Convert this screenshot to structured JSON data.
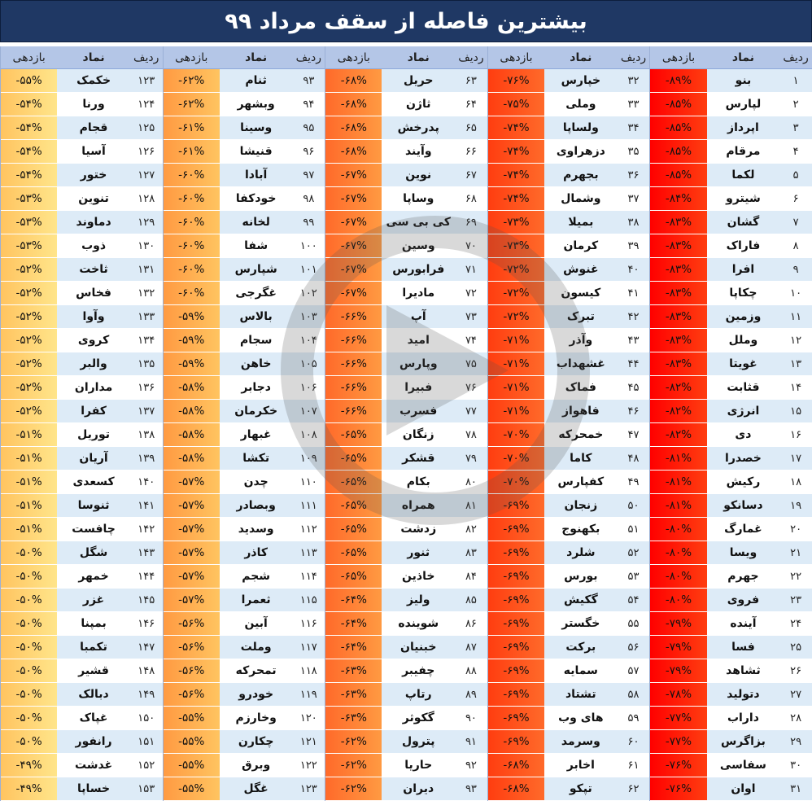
{
  "title": "بیشترین فاصله از سقف مرداد ۹۹",
  "headers": {
    "index": "ردیف",
    "symbol": "نماد",
    "return": "بازدهی"
  },
  "colors": {
    "title_bg": "#1f3864",
    "header_bg": "#b4c6e7",
    "row_odd": "#ddebf7",
    "row_even": "#ffffff",
    "gradient": [
      "#ff0000",
      "#ff3d10",
      "#ff6a2a",
      "#ff9a42",
      "#ffc460",
      "#ffe58a"
    ]
  },
  "watermark_icon": "logo-watermark-icon",
  "blocks": [
    {
      "rows": [
        {
          "i": "۱",
          "s": "بنو",
          "r": "-۸۹%"
        },
        {
          "i": "۲",
          "s": "لپارس",
          "r": "-۸۵%"
        },
        {
          "i": "۳",
          "s": "اپرداز",
          "r": "-۸۵%"
        },
        {
          "i": "۴",
          "s": "مرقام",
          "r": "-۸۵%"
        },
        {
          "i": "۵",
          "s": "لکما",
          "r": "-۸۵%"
        },
        {
          "i": "۶",
          "s": "شیترو",
          "r": "-۸۴%"
        },
        {
          "i": "۷",
          "s": "گشان",
          "r": "-۸۳%"
        },
        {
          "i": "۸",
          "s": "فاراک",
          "r": "-۸۳%"
        },
        {
          "i": "۹",
          "s": "افرا",
          "r": "-۸۳%"
        },
        {
          "i": "۱۰",
          "s": "چکاپا",
          "r": "-۸۳%"
        },
        {
          "i": "۱۱",
          "s": "وزمین",
          "r": "-۸۳%"
        },
        {
          "i": "۱۲",
          "s": "وملل",
          "r": "-۸۳%"
        },
        {
          "i": "۱۳",
          "s": "غویتا",
          "r": "-۸۳%"
        },
        {
          "i": "۱۴",
          "s": "قثابت",
          "r": "-۸۲%"
        },
        {
          "i": "۱۵",
          "s": "انرژی",
          "r": "-۸۲%"
        },
        {
          "i": "۱۶",
          "s": "دی",
          "r": "-۸۲%"
        },
        {
          "i": "۱۷",
          "s": "خصدرا",
          "r": "-۸۱%"
        },
        {
          "i": "۱۸",
          "s": "رکیش",
          "r": "-۸۱%"
        },
        {
          "i": "۱۹",
          "s": "دسانکو",
          "r": "-۸۱%"
        },
        {
          "i": "۲۰",
          "s": "غمارگ",
          "r": "-۸۰%"
        },
        {
          "i": "۲۱",
          "s": "ویسا",
          "r": "-۸۰%"
        },
        {
          "i": "۲۲",
          "s": "جهرم",
          "r": "-۸۰%"
        },
        {
          "i": "۲۳",
          "s": "فروی",
          "r": "-۸۰%"
        },
        {
          "i": "۲۴",
          "s": "آینده",
          "r": "-۷۹%"
        },
        {
          "i": "۲۵",
          "s": "فسا",
          "r": "-۷۹%"
        },
        {
          "i": "۲۶",
          "s": "ثشاهد",
          "r": "-۷۹%"
        },
        {
          "i": "۲۷",
          "s": "دتولید",
          "r": "-۷۸%"
        },
        {
          "i": "۲۸",
          "s": "داراب",
          "r": "-۷۷%"
        },
        {
          "i": "۲۹",
          "s": "بزاگرس",
          "r": "-۷۷%"
        },
        {
          "i": "۳۰",
          "s": "سفاسی",
          "r": "-۷۶%"
        },
        {
          "i": "۳۱",
          "s": "اوان",
          "r": "-۷۶%"
        }
      ]
    },
    {
      "rows": [
        {
          "i": "۳۲",
          "s": "خپارس",
          "r": "-۷۶%"
        },
        {
          "i": "۳۳",
          "s": "وملی",
          "r": "-۷۵%"
        },
        {
          "i": "۳۴",
          "s": "ولساپا",
          "r": "-۷۴%"
        },
        {
          "i": "۳۵",
          "s": "دزهراوی",
          "r": "-۷۴%"
        },
        {
          "i": "۳۶",
          "s": "بجهرم",
          "r": "-۷۴%"
        },
        {
          "i": "۳۷",
          "s": "وشمال",
          "r": "-۷۴%"
        },
        {
          "i": "۳۸",
          "s": "بمیلا",
          "r": "-۷۳%"
        },
        {
          "i": "۳۹",
          "s": "کرمان",
          "r": "-۷۳%"
        },
        {
          "i": "۴۰",
          "s": "غنوش",
          "r": "-۷۲%"
        },
        {
          "i": "۴۱",
          "s": "کیسون",
          "r": "-۷۲%"
        },
        {
          "i": "۴۲",
          "s": "تبرک",
          "r": "-۷۲%"
        },
        {
          "i": "۴۳",
          "s": "وآذر",
          "r": "-۷۱%"
        },
        {
          "i": "۴۴",
          "s": "غشهداب",
          "r": "-۷۱%"
        },
        {
          "i": "۴۵",
          "s": "فماک",
          "r": "-۷۱%"
        },
        {
          "i": "۴۶",
          "s": "فاهواز",
          "r": "-۷۱%"
        },
        {
          "i": "۴۷",
          "s": "خمحرکه",
          "r": "-۷۰%"
        },
        {
          "i": "۴۸",
          "s": "کاما",
          "r": "-۷۰%"
        },
        {
          "i": "۴۹",
          "s": "کفپارس",
          "r": "-۷۰%"
        },
        {
          "i": "۵۰",
          "s": "زنجان",
          "r": "-۶۹%"
        },
        {
          "i": "۵۱",
          "s": "بکهنوج",
          "r": "-۶۹%"
        },
        {
          "i": "۵۲",
          "s": "شلرد",
          "r": "-۶۹%"
        },
        {
          "i": "۵۳",
          "s": "بورس",
          "r": "-۶۹%"
        },
        {
          "i": "۵۴",
          "s": "گکیش",
          "r": "-۶۹%"
        },
        {
          "i": "۵۵",
          "s": "خگستر",
          "r": "-۶۹%"
        },
        {
          "i": "۵۶",
          "s": "برکت",
          "r": "-۶۹%"
        },
        {
          "i": "۵۷",
          "s": "سمایه",
          "r": "-۶۹%"
        },
        {
          "i": "۵۸",
          "s": "تشتاد",
          "r": "-۶۹%"
        },
        {
          "i": "۵۹",
          "s": "های وب",
          "r": "-۶۹%"
        },
        {
          "i": "۶۰",
          "s": "وسرمد",
          "r": "-۶۹%"
        },
        {
          "i": "۶۱",
          "s": "اخابر",
          "r": "-۶۸%"
        },
        {
          "i": "۶۲",
          "s": "تپکو",
          "r": "-۶۸%"
        }
      ]
    },
    {
      "rows": [
        {
          "i": "۶۳",
          "s": "حریل",
          "r": "-۶۸%"
        },
        {
          "i": "۶۴",
          "s": "ثاژن",
          "r": "-۶۸%"
        },
        {
          "i": "۶۵",
          "s": "پدرخش",
          "r": "-۶۸%"
        },
        {
          "i": "۶۶",
          "s": "وآیند",
          "r": "-۶۸%"
        },
        {
          "i": "۶۷",
          "s": "نوین",
          "r": "-۶۷%"
        },
        {
          "i": "۶۸",
          "s": "وساپا",
          "r": "-۶۷%"
        },
        {
          "i": "۶۹",
          "s": "کی بی سی",
          "r": "-۶۷%"
        },
        {
          "i": "۷۰",
          "s": "وسین",
          "r": "-۶۷%"
        },
        {
          "i": "۷۱",
          "s": "فرابورس",
          "r": "-۶۷%"
        },
        {
          "i": "۷۲",
          "s": "مادیرا",
          "r": "-۶۷%"
        },
        {
          "i": "۷۳",
          "s": "آپ",
          "r": "-۶۶%"
        },
        {
          "i": "۷۴",
          "s": "امید",
          "r": "-۶۶%"
        },
        {
          "i": "۷۵",
          "s": "وپارس",
          "r": "-۶۶%"
        },
        {
          "i": "۷۶",
          "s": "فبیرا",
          "r": "-۶۶%"
        },
        {
          "i": "۷۷",
          "s": "فسرب",
          "r": "-۶۶%"
        },
        {
          "i": "۷۸",
          "s": "زنگان",
          "r": "-۶۵%"
        },
        {
          "i": "۷۹",
          "s": "قشکر",
          "r": "-۶۵%"
        },
        {
          "i": "۸۰",
          "s": "بکام",
          "r": "-۶۵%"
        },
        {
          "i": "۸۱",
          "s": "همراه",
          "r": "-۶۵%"
        },
        {
          "i": "۸۲",
          "s": "زدشت",
          "r": "-۶۵%"
        },
        {
          "i": "۸۳",
          "s": "ثنور",
          "r": "-۶۵%"
        },
        {
          "i": "۸۴",
          "s": "خاذین",
          "r": "-۶۵%"
        },
        {
          "i": "۸۵",
          "s": "ولیز",
          "r": "-۶۴%"
        },
        {
          "i": "۸۶",
          "s": "شوینده",
          "r": "-۶۴%"
        },
        {
          "i": "۸۷",
          "s": "خبنیان",
          "r": "-۶۴%"
        },
        {
          "i": "۸۸",
          "s": "چفیبر",
          "r": "-۶۳%"
        },
        {
          "i": "۸۹",
          "s": "رتاپ",
          "r": "-۶۳%"
        },
        {
          "i": "۹۰",
          "s": "گکوثر",
          "r": "-۶۳%"
        },
        {
          "i": "۹۱",
          "s": "پترول",
          "r": "-۶۲%"
        },
        {
          "i": "۹۲",
          "s": "حاریا",
          "r": "-۶۲%"
        },
        {
          "i": "۹۳",
          "s": "دیران",
          "r": "-۶۲%"
        }
      ]
    },
    {
      "rows": [
        {
          "i": "۹۳",
          "s": "ثنام",
          "r": "-۶۲%"
        },
        {
          "i": "۹۴",
          "s": "وبشهر",
          "r": "-۶۲%"
        },
        {
          "i": "۹۵",
          "s": "وسینا",
          "r": "-۶۱%"
        },
        {
          "i": "۹۶",
          "s": "قنیشا",
          "r": "-۶۱%"
        },
        {
          "i": "۹۷",
          "s": "آبادا",
          "r": "-۶۰%"
        },
        {
          "i": "۹۸",
          "s": "خودکفا",
          "r": "-۶۰%"
        },
        {
          "i": "۹۹",
          "s": "لخانه",
          "r": "-۶۰%"
        },
        {
          "i": "۱۰۰",
          "s": "شفا",
          "r": "-۶۰%"
        },
        {
          "i": "۱۰۱",
          "s": "شپارس",
          "r": "-۶۰%"
        },
        {
          "i": "۱۰۲",
          "s": "غگرجی",
          "r": "-۶۰%"
        },
        {
          "i": "۱۰۳",
          "s": "بالاس",
          "r": "-۵۹%"
        },
        {
          "i": "۱۰۴",
          "s": "سجام",
          "r": "-۵۹%"
        },
        {
          "i": "۱۰۵",
          "s": "خاهن",
          "r": "-۵۹%"
        },
        {
          "i": "۱۰۶",
          "s": "دجابر",
          "r": "-۵۸%"
        },
        {
          "i": "۱۰۷",
          "s": "خکرمان",
          "r": "-۵۸%"
        },
        {
          "i": "۱۰۸",
          "s": "غبهار",
          "r": "-۵۸%"
        },
        {
          "i": "۱۰۹",
          "s": "تکشا",
          "r": "-۵۸%"
        },
        {
          "i": "۱۱۰",
          "s": "چدن",
          "r": "-۵۷%"
        },
        {
          "i": "۱۱۱",
          "s": "وبصادر",
          "r": "-۵۷%"
        },
        {
          "i": "۱۱۲",
          "s": "وسدید",
          "r": "-۵۷%"
        },
        {
          "i": "۱۱۳",
          "s": "کاذر",
          "r": "-۵۷%"
        },
        {
          "i": "۱۱۴",
          "s": "شجم",
          "r": "-۵۷%"
        },
        {
          "i": "۱۱۵",
          "s": "ثعمرا",
          "r": "-۵۷%"
        },
        {
          "i": "۱۱۶",
          "s": "آبین",
          "r": "-۵۶%"
        },
        {
          "i": "۱۱۷",
          "s": "وملت",
          "r": "-۵۶%"
        },
        {
          "i": "۱۱۸",
          "s": "تمحرکه",
          "r": "-۵۶%"
        },
        {
          "i": "۱۱۹",
          "s": "خودرو",
          "r": "-۵۶%"
        },
        {
          "i": "۱۲۰",
          "s": "وخارزم",
          "r": "-۵۵%"
        },
        {
          "i": "۱۲۱",
          "s": "چکارن",
          "r": "-۵۵%"
        },
        {
          "i": "۱۲۲",
          "s": "وبرق",
          "r": "-۵۵%"
        },
        {
          "i": "۱۲۳",
          "s": "غگل",
          "r": "-۵۵%"
        }
      ]
    },
    {
      "rows": [
        {
          "i": "۱۲۳",
          "s": "خکمک",
          "r": "-۵۵%"
        },
        {
          "i": "۱۲۴",
          "s": "ورنا",
          "r": "-۵۴%"
        },
        {
          "i": "۱۲۵",
          "s": "قجام",
          "r": "-۵۴%"
        },
        {
          "i": "۱۲۶",
          "s": "آسیا",
          "r": "-۵۴%"
        },
        {
          "i": "۱۲۷",
          "s": "ختور",
          "r": "-۵۴%"
        },
        {
          "i": "۱۲۸",
          "s": "تنوین",
          "r": "-۵۳%"
        },
        {
          "i": "۱۲۹",
          "s": "دماوند",
          "r": "-۵۳%"
        },
        {
          "i": "۱۳۰",
          "s": "ذوب",
          "r": "-۵۳%"
        },
        {
          "i": "۱۳۱",
          "s": "ثاخت",
          "r": "-۵۲%"
        },
        {
          "i": "۱۳۲",
          "s": "فخاس",
          "r": "-۵۲%"
        },
        {
          "i": "۱۳۳",
          "s": "وآوا",
          "r": "-۵۲%"
        },
        {
          "i": "۱۳۴",
          "s": "کروی",
          "r": "-۵۲%"
        },
        {
          "i": "۱۳۵",
          "s": "والبر",
          "r": "-۵۲%"
        },
        {
          "i": "۱۳۶",
          "s": "مداران",
          "r": "-۵۲%"
        },
        {
          "i": "۱۳۷",
          "s": "کفرا",
          "r": "-۵۲%"
        },
        {
          "i": "۱۳۸",
          "s": "توریل",
          "r": "-۵۱%"
        },
        {
          "i": "۱۳۹",
          "s": "آریان",
          "r": "-۵۱%"
        },
        {
          "i": "۱۴۰",
          "s": "کسعدی",
          "r": "-۵۱%"
        },
        {
          "i": "۱۴۱",
          "s": "ثنوسا",
          "r": "-۵۱%"
        },
        {
          "i": "۱۴۲",
          "s": "چافست",
          "r": "-۵۱%"
        },
        {
          "i": "۱۴۳",
          "s": "شگل",
          "r": "-۵۰%"
        },
        {
          "i": "۱۴۴",
          "s": "خمهر",
          "r": "-۵۰%"
        },
        {
          "i": "۱۴۵",
          "s": "غزر",
          "r": "-۵۰%"
        },
        {
          "i": "۱۴۶",
          "s": "بمپنا",
          "r": "-۵۰%"
        },
        {
          "i": "۱۴۷",
          "s": "تکمبا",
          "r": "-۵۰%"
        },
        {
          "i": "۱۴۸",
          "s": "قشیر",
          "r": "-۵۰%"
        },
        {
          "i": "۱۴۹",
          "s": "دبالک",
          "r": "-۵۰%"
        },
        {
          "i": "۱۵۰",
          "s": "غپاک",
          "r": "-۵۰%"
        },
        {
          "i": "۱۵۱",
          "s": "رانفور",
          "r": "-۵۰%"
        },
        {
          "i": "۱۵۲",
          "s": "غدشت",
          "r": "-۴۹%"
        },
        {
          "i": "۱۵۳",
          "s": "خساپا",
          "r": "-۴۹%"
        }
      ]
    }
  ]
}
